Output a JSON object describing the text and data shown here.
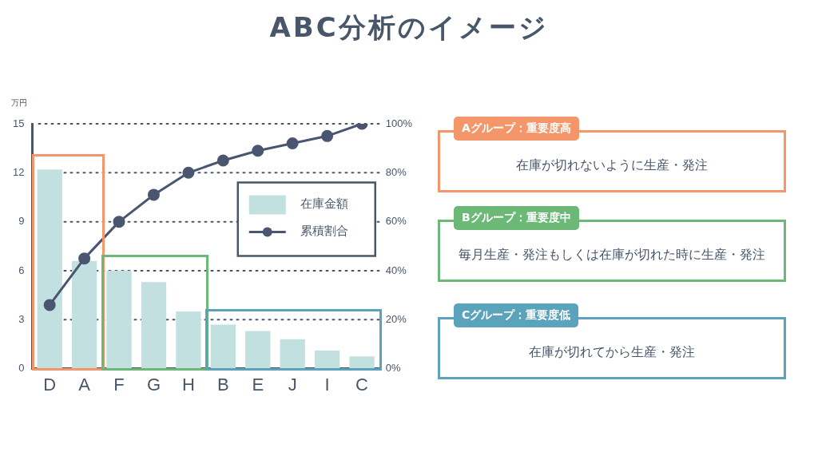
{
  "chart_data": {
    "type": "bar",
    "title": "ABC分析のイメージ",
    "ylabel": "万円",
    "categories": [
      "D",
      "A",
      "F",
      "G",
      "H",
      "B",
      "E",
      "J",
      "I",
      "C"
    ],
    "series": [
      {
        "name": "在庫金額",
        "color": "#c2e0df",
        "values": [
          12.2,
          6.6,
          6.0,
          5.3,
          3.5,
          2.7,
          2.3,
          1.8,
          1.1,
          0.75
        ]
      },
      {
        "name": "累積割合",
        "type": "line",
        "axis": "y2",
        "color": "#4a5670",
        "marker": "circle",
        "values": [
          26,
          45,
          60,
          71,
          80,
          85,
          89,
          92,
          95,
          100
        ]
      }
    ],
    "ylim": [
      0,
      15
    ],
    "yticks": [
      0,
      3,
      6,
      9,
      12,
      15
    ],
    "y2lim": [
      0,
      100
    ],
    "y2ticks": [
      {
        "value": 0,
        "label": "0%"
      },
      {
        "value": 20,
        "label": "20%"
      },
      {
        "value": 40,
        "label": "40%"
      },
      {
        "value": 60,
        "label": "60%"
      },
      {
        "value": 80,
        "label": "80%"
      },
      {
        "value": 100,
        "label": "100%"
      }
    ],
    "grid": "y",
    "legend": "right",
    "annotations": [
      "Aグループ：重要度高",
      "在庫が切れないように生産・発注",
      "Bグループ：重要度中",
      "毎月生産・発注もしくは在庫が切れた時に生産・発注",
      "Cグループ：重要度低",
      "在庫が切れてから生産・発注"
    ]
  }
}
